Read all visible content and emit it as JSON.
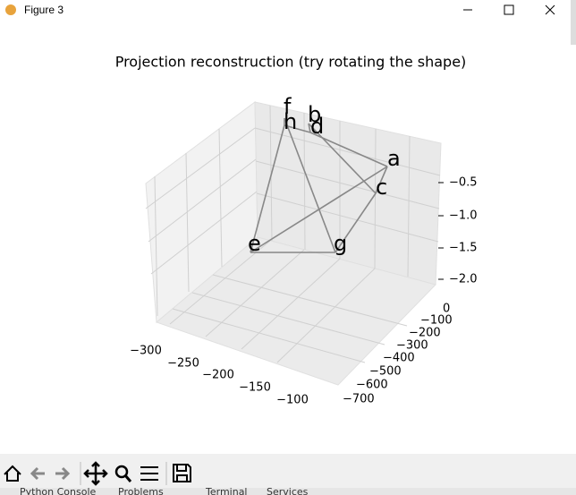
{
  "window": {
    "title": "Figure 3"
  },
  "figure": {
    "title": "Projection reconstruction (try rotating the shape)",
    "x_tick_labels": [
      "−300",
      "−250",
      "−200",
      "−150",
      "−100"
    ],
    "y_tick_labels": [
      "0",
      "−100",
      "−200",
      "−300",
      "−400",
      "−500",
      "−600",
      "−700"
    ],
    "z_tick_labels": [
      "−0.5",
      "−1.0",
      "−1.5",
      "−2.0"
    ],
    "point_labels": [
      "a",
      "b",
      "c",
      "d",
      "e",
      "f",
      "g",
      "h"
    ]
  },
  "taskbar": {
    "tabs": [
      "Python Console",
      "Problems",
      "Terminal",
      "Services"
    ]
  }
}
